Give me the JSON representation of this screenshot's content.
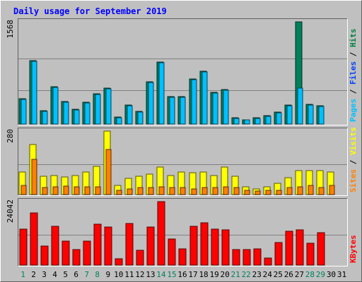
{
  "chart_data": {
    "type": "bar",
    "title": "Daily usage for September 2019",
    "categories": [
      "1",
      "2",
      "3",
      "4",
      "5",
      "6",
      "7",
      "8",
      "9",
      "10",
      "11",
      "12",
      "13",
      "14",
      "15",
      "16",
      "17",
      "18",
      "19",
      "20",
      "21",
      "22",
      "23",
      "24",
      "25",
      "26",
      "27",
      "28",
      "29",
      "30",
      "31"
    ],
    "weekend_days": [
      "1",
      "7",
      "8",
      "14",
      "15",
      "21",
      "22",
      "28",
      "29"
    ],
    "panels": [
      {
        "id": "hits-files-pages",
        "ymax": 1568,
        "ymax_label": "1568",
        "legend": [
          {
            "text": "Pages",
            "color": "#00c0ff"
          },
          {
            "text": "Files",
            "color": "#0040ff"
          },
          {
            "text": "Hits",
            "color": "#008040"
          }
        ],
        "legend_sep": " / ",
        "series": [
          {
            "name": "Hits",
            "color": "#00805c",
            "values": [
              390,
              970,
              210,
              570,
              350,
              230,
              330,
              460,
              550,
              110,
              290,
              190,
              650,
              950,
              420,
              420,
              690,
              810,
              490,
              530,
              100,
              70,
              100,
              130,
              180,
              290,
              1568,
              300,
              280,
              0,
              0
            ]
          },
          {
            "name": "Files",
            "color": "#00c0ff",
            "values": [
              380,
              960,
              200,
              560,
              340,
              220,
              320,
              450,
              540,
              100,
              280,
              180,
              640,
              940,
              410,
              410,
              680,
              800,
              480,
              520,
              90,
              60,
              90,
              120,
              170,
              280,
              550,
              290,
              270,
              0,
              0
            ]
          },
          {
            "name": "Pages",
            "color": "#00c0ff",
            "values": [
              0,
              0,
              0,
              0,
              0,
              0,
              0,
              0,
              0,
              0,
              0,
              0,
              0,
              0,
              0,
              0,
              0,
              0,
              0,
              0,
              0,
              0,
              0,
              0,
              0,
              0,
              0,
              0,
              0,
              0,
              0
            ]
          }
        ]
      },
      {
        "id": "visits-sites",
        "ymax": 280,
        "ymax_label": "280",
        "legend": [
          {
            "text": "Sites",
            "color": "#ff8000"
          },
          {
            "text": "Visits",
            "color": "#ffff00"
          }
        ],
        "legend_sep": " / ",
        "series": [
          {
            "name": "Visits",
            "color": "#ffff00",
            "values": [
              100,
              220,
              80,
              85,
              78,
              85,
              100,
              125,
              280,
              40,
              70,
              80,
              90,
              120,
              85,
              100,
              95,
              100,
              85,
              120,
              80,
              35,
              25,
              35,
              50,
              75,
              105,
              105,
              105,
              100,
              0
            ]
          },
          {
            "name": "Sites",
            "color": "#ff8000",
            "values": [
              40,
              155,
              30,
              35,
              38,
              35,
              35,
              35,
              200,
              20,
              25,
              32,
              30,
              35,
              30,
              30,
              25,
              30,
              30,
              35,
              30,
              20,
              15,
              20,
              20,
              30,
              35,
              40,
              30,
              40,
              0
            ]
          }
        ]
      },
      {
        "id": "kbytes",
        "ymax": 24042,
        "ymax_label": "24042",
        "legend": [
          {
            "text": "KBytes",
            "color": "#ff0000"
          }
        ],
        "legend_sep": "",
        "series": [
          {
            "name": "KBytes",
            "color": "#ff0000",
            "values": [
              13500,
              19700,
              7200,
              14800,
              9000,
              5900,
              9000,
              15500,
              14300,
              2500,
              15800,
              5700,
              14500,
              24042,
              10000,
              6100,
              14600,
              16000,
              13500,
              13300,
              5800,
              5800,
              6200,
              2800,
              8500,
              12800,
              13300,
              8400,
              12300,
              0,
              0
            ]
          }
        ]
      }
    ]
  },
  "colors": {
    "title": "#0000ff",
    "weekday_label": "#000000",
    "weekend_label": "#00805c",
    "plot_bg": "#c0c0c0",
    "grid": "#808080"
  }
}
